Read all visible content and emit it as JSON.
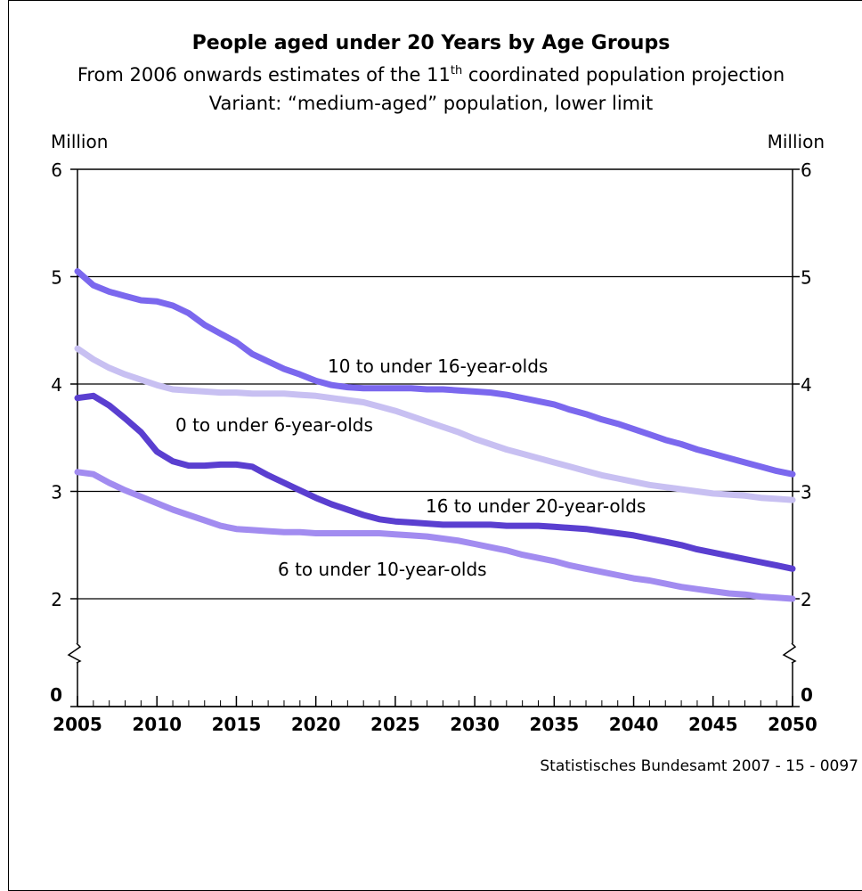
{
  "header": {
    "title": "People aged under 20 Years by Age Groups",
    "subtitle_pre": "From 2006 onwards estimates of the 11",
    "subtitle_sup": "th",
    "subtitle_post": " coordinated population projection",
    "variant": "Variant: “medium-aged” population, lower limit"
  },
  "source": "Statistisches Bundesamt 2007 - 15 - 0097",
  "chart_data": {
    "type": "line",
    "title": "People aged under 20 Years by Age Groups",
    "ylabel_left": "Million",
    "ylabel_right": "Million",
    "xlim": [
      2005,
      2050
    ],
    "ylim": [
      0,
      6
    ],
    "y_axis_break": true,
    "x_ticks": [
      "2005",
      "2010",
      "2015",
      "2020",
      "2025",
      "2030",
      "2035",
      "2040",
      "2045",
      "2050"
    ],
    "y_ticks": [
      "0",
      "2",
      "3",
      "4",
      "5",
      "6"
    ],
    "grid": "horizontal",
    "x": [
      2005,
      2006,
      2007,
      2008,
      2009,
      2010,
      2011,
      2012,
      2013,
      2014,
      2015,
      2016,
      2017,
      2018,
      2019,
      2020,
      2021,
      2022,
      2023,
      2024,
      2025,
      2026,
      2027,
      2028,
      2029,
      2030,
      2031,
      2032,
      2033,
      2034,
      2035,
      2036,
      2037,
      2038,
      2039,
      2040,
      2041,
      2042,
      2043,
      2044,
      2045,
      2046,
      2047,
      2048,
      2049,
      2050
    ],
    "series": [
      {
        "name": "10 to under 16-year-olds",
        "color": "#7b68ee",
        "values": [
          5.05,
          4.92,
          4.86,
          4.82,
          4.78,
          4.77,
          4.73,
          4.66,
          4.55,
          4.47,
          4.39,
          4.28,
          4.21,
          4.14,
          4.09,
          4.03,
          3.99,
          3.97,
          3.96,
          3.96,
          3.96,
          3.96,
          3.95,
          3.95,
          3.94,
          3.93,
          3.92,
          3.9,
          3.87,
          3.84,
          3.81,
          3.76,
          3.72,
          3.67,
          3.63,
          3.58,
          3.53,
          3.48,
          3.44,
          3.39,
          3.35,
          3.31,
          3.27,
          3.23,
          3.19,
          3.16
        ]
      },
      {
        "name": "0 to under 6-year-olds",
        "color": "#c8c0f2",
        "values": [
          4.33,
          4.23,
          4.15,
          4.09,
          4.04,
          3.99,
          3.95,
          3.94,
          3.93,
          3.92,
          3.92,
          3.91,
          3.91,
          3.91,
          3.9,
          3.89,
          3.87,
          3.85,
          3.83,
          3.79,
          3.75,
          3.7,
          3.65,
          3.6,
          3.55,
          3.49,
          3.44,
          3.39,
          3.35,
          3.31,
          3.27,
          3.23,
          3.19,
          3.15,
          3.12,
          3.09,
          3.06,
          3.04,
          3.02,
          3.0,
          2.98,
          2.97,
          2.96,
          2.94,
          2.93,
          2.92
        ]
      },
      {
        "name": "16 to under 20-year-olds",
        "color": "#5a3fd0",
        "values": [
          3.87,
          3.89,
          3.8,
          3.68,
          3.55,
          3.37,
          3.28,
          3.24,
          3.24,
          3.25,
          3.25,
          3.23,
          3.15,
          3.08,
          3.01,
          2.94,
          2.88,
          2.83,
          2.78,
          2.74,
          2.72,
          2.71,
          2.7,
          2.69,
          2.69,
          2.69,
          2.69,
          2.68,
          2.68,
          2.68,
          2.67,
          2.66,
          2.65,
          2.63,
          2.61,
          2.59,
          2.56,
          2.53,
          2.5,
          2.46,
          2.43,
          2.4,
          2.37,
          2.34,
          2.31,
          2.28
        ]
      },
      {
        "name": "6 to under 10-year-olds",
        "color": "#a28cf0",
        "values": [
          3.18,
          3.16,
          3.08,
          3.01,
          2.95,
          2.89,
          2.83,
          2.78,
          2.73,
          2.68,
          2.65,
          2.64,
          2.63,
          2.62,
          2.62,
          2.61,
          2.61,
          2.61,
          2.61,
          2.61,
          2.6,
          2.59,
          2.58,
          2.56,
          2.54,
          2.51,
          2.48,
          2.45,
          2.41,
          2.38,
          2.35,
          2.31,
          2.28,
          2.25,
          2.22,
          2.19,
          2.17,
          2.14,
          2.11,
          2.09,
          2.07,
          2.05,
          2.04,
          2.02,
          2.01,
          2.0
        ]
      }
    ]
  }
}
